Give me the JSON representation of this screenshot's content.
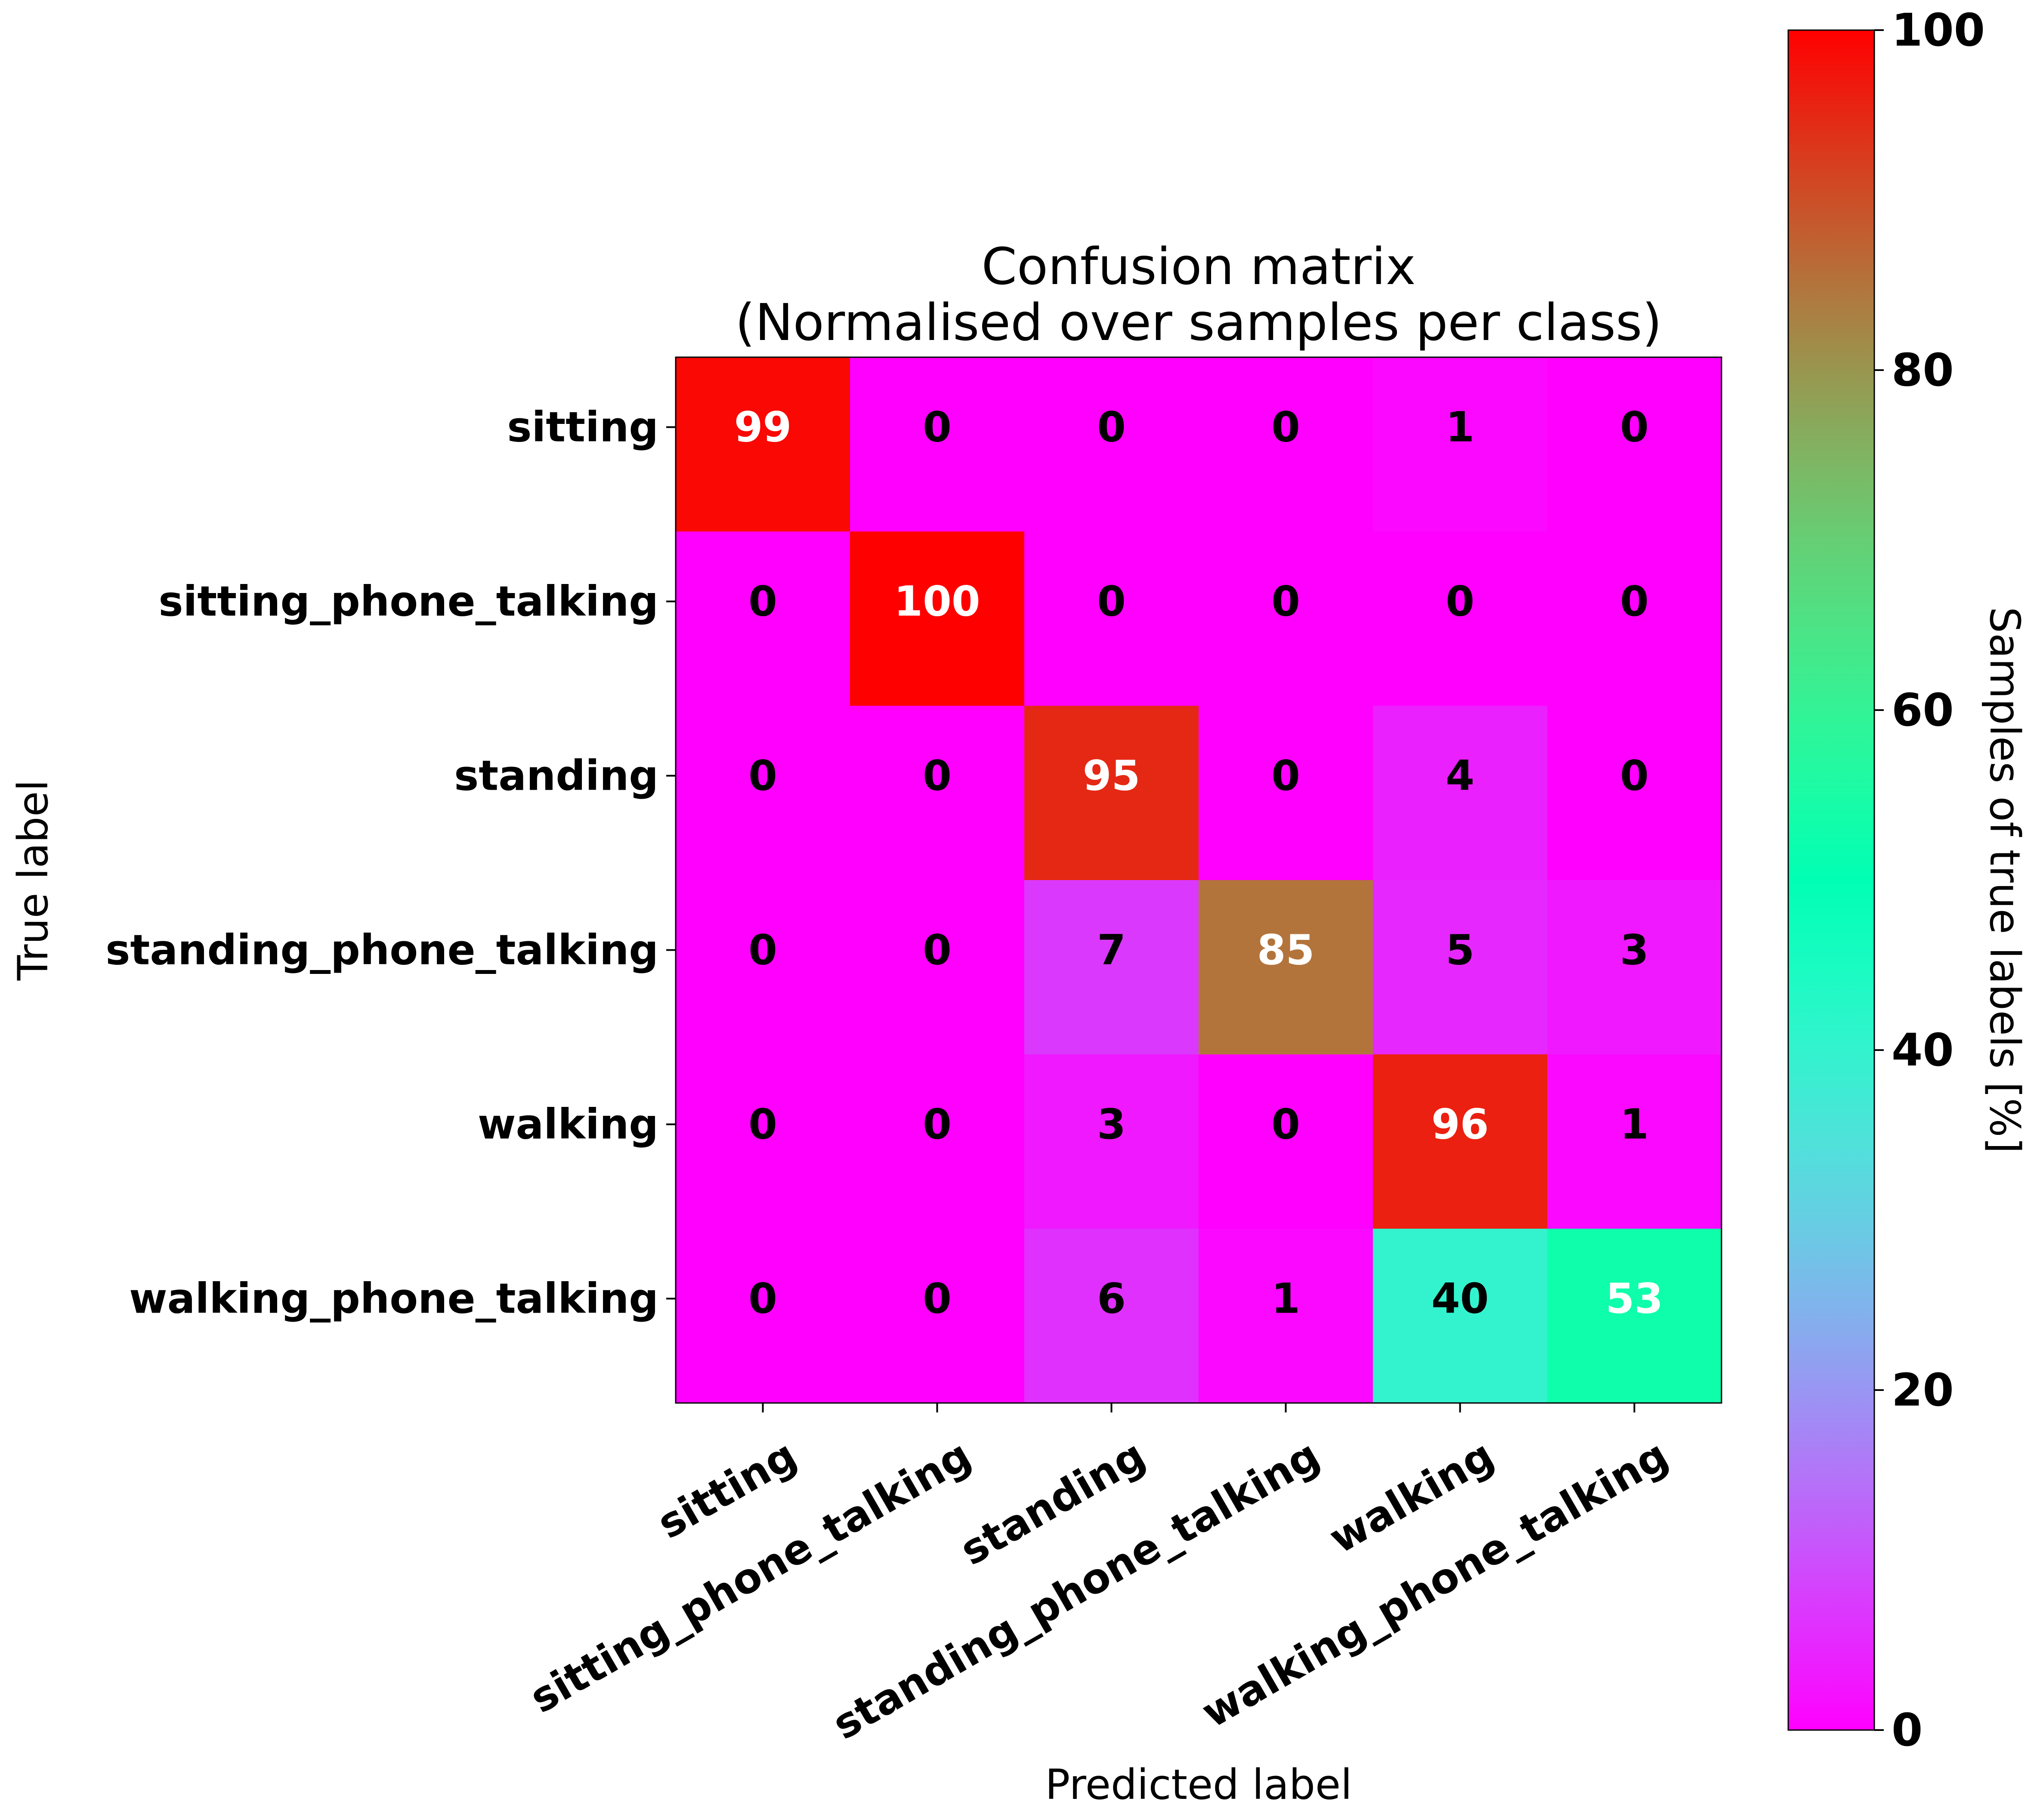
{
  "chart_data": {
    "type": "heatmap",
    "title_lines": [
      "Confusion matrix",
      "(Normalised over samples per class)"
    ],
    "xlabel": "Predicted label",
    "ylabel": "True label",
    "x_categories": [
      "sitting",
      "sitting_phone_talking",
      "standing",
      "standing_phone_talking",
      "walking",
      "walking_phone_talking"
    ],
    "y_categories": [
      "sitting",
      "sitting_phone_talking",
      "standing",
      "standing_phone_talking",
      "walking",
      "walking_phone_talking"
    ],
    "values": [
      [
        99,
        0,
        0,
        0,
        1,
        0
      ],
      [
        0,
        100,
        0,
        0,
        0,
        0
      ],
      [
        0,
        0,
        95,
        0,
        4,
        0
      ],
      [
        0,
        0,
        7,
        85,
        5,
        3
      ],
      [
        0,
        0,
        3,
        0,
        96,
        1
      ],
      [
        0,
        0,
        6,
        1,
        40,
        53
      ]
    ],
    "colorbar": {
      "label": "Samples of true labels [%]",
      "range": [
        0,
        100
      ],
      "ticks": [
        0,
        20,
        40,
        60,
        80,
        100
      ],
      "colormap": "rainbow"
    },
    "text_color_threshold": 50,
    "text_color_high": "#ffffff",
    "text_color_low": "#000000"
  }
}
